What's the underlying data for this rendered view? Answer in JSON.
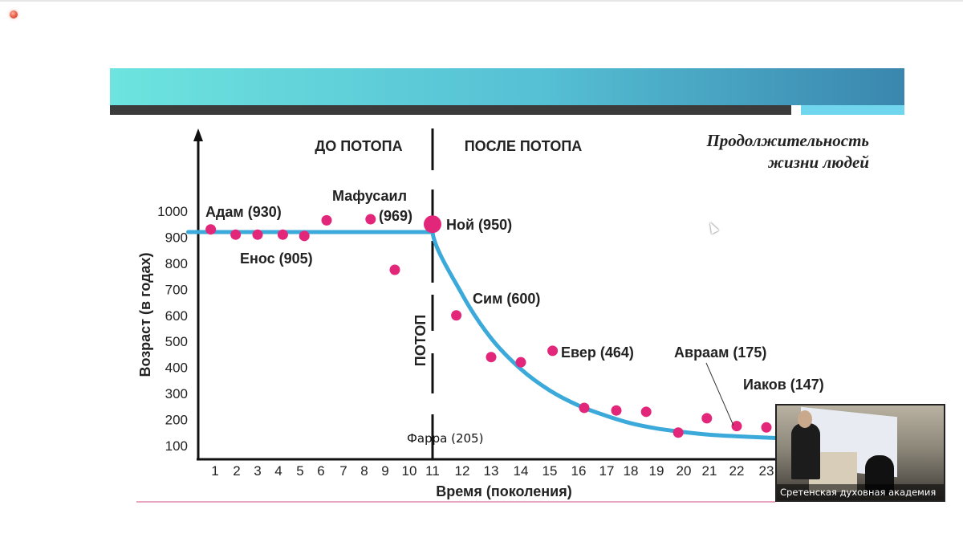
{
  "window": {
    "record_icon": "record-indicator-icon"
  },
  "slide": {
    "header_colors": {
      "bar_start": "#6de4df",
      "bar_end": "#3a86ae",
      "strip_dark": "#3b3b3b",
      "strip_light": "#6fd6ee"
    },
    "title_line1": "Продолжительность",
    "title_line2": "жизни людей"
  },
  "chart_data": {
    "type": "scatter",
    "title": "Продолжительность жизни людей",
    "xlabel": "Время (поколения)",
    "ylabel": "Возраст (в годах)",
    "xticks": [
      "1",
      "2",
      "3",
      "4",
      "5",
      "6",
      "7",
      "8",
      "9",
      "10",
      "11",
      "12",
      "13",
      "14",
      "15",
      "16",
      "17",
      "18",
      "19",
      "20",
      "21",
      "22",
      "23"
    ],
    "yticks": [
      "1000",
      "900",
      "800",
      "700",
      "600",
      "500",
      "400",
      "300",
      "200",
      "100"
    ],
    "ylim": [
      100,
      1000
    ],
    "grid": false,
    "region_labels": {
      "before": "ДО ПОТОПА",
      "after": "ПОСЛЕ ПОТОПА",
      "flood": "ПОТОП"
    },
    "flood_generation": 11,
    "colors": {
      "points": "#e2267a",
      "trend": "#3ba9d9"
    },
    "points": [
      {
        "x": 0.8,
        "y": 930
      },
      {
        "x": 1.95,
        "y": 910
      },
      {
        "x": 3,
        "y": 910
      },
      {
        "x": 4.2,
        "y": 910
      },
      {
        "x": 5.2,
        "y": 905
      },
      {
        "x": 6.25,
        "y": 965
      },
      {
        "x": 8.3,
        "y": 969
      },
      {
        "x": 9.4,
        "y": 775
      },
      {
        "x": 11,
        "y": 950,
        "highlight": true
      },
      {
        "x": 11.8,
        "y": 600
      },
      {
        "x": 13,
        "y": 440
      },
      {
        "x": 14,
        "y": 420
      },
      {
        "x": 15.1,
        "y": 464
      },
      {
        "x": 16.2,
        "y": 245
      },
      {
        "x": 17.4,
        "y": 235
      },
      {
        "x": 18.6,
        "y": 230
      },
      {
        "x": 19.8,
        "y": 150
      },
      {
        "x": 20.9,
        "y": 205
      },
      {
        "x": 22,
        "y": 175
      },
      {
        "x": 23,
        "y": 170
      }
    ],
    "trend": {
      "x": [
        0.5,
        11,
        12,
        13,
        14,
        15,
        16,
        17,
        18,
        19,
        20,
        21,
        22,
        23,
        24
      ],
      "y": [
        920,
        920,
        680,
        512,
        394,
        312,
        254,
        214,
        186,
        166,
        152,
        142,
        136,
        131,
        126
      ]
    },
    "annotations": [
      {
        "text": "Адам (930)"
      },
      {
        "text": "Енос (905)"
      },
      {
        "text": "Мафусаил"
      },
      {
        "text": "(969)"
      },
      {
        "text": "Ной (950)"
      },
      {
        "text": "Сим (600)"
      },
      {
        "text": "Евер (464)"
      },
      {
        "text": "Авраам (175)"
      },
      {
        "text": "Иаков (147)"
      },
      {
        "text": "Фарра (205)"
      }
    ]
  },
  "video": {
    "caption": "Сретенская духовная академия"
  }
}
